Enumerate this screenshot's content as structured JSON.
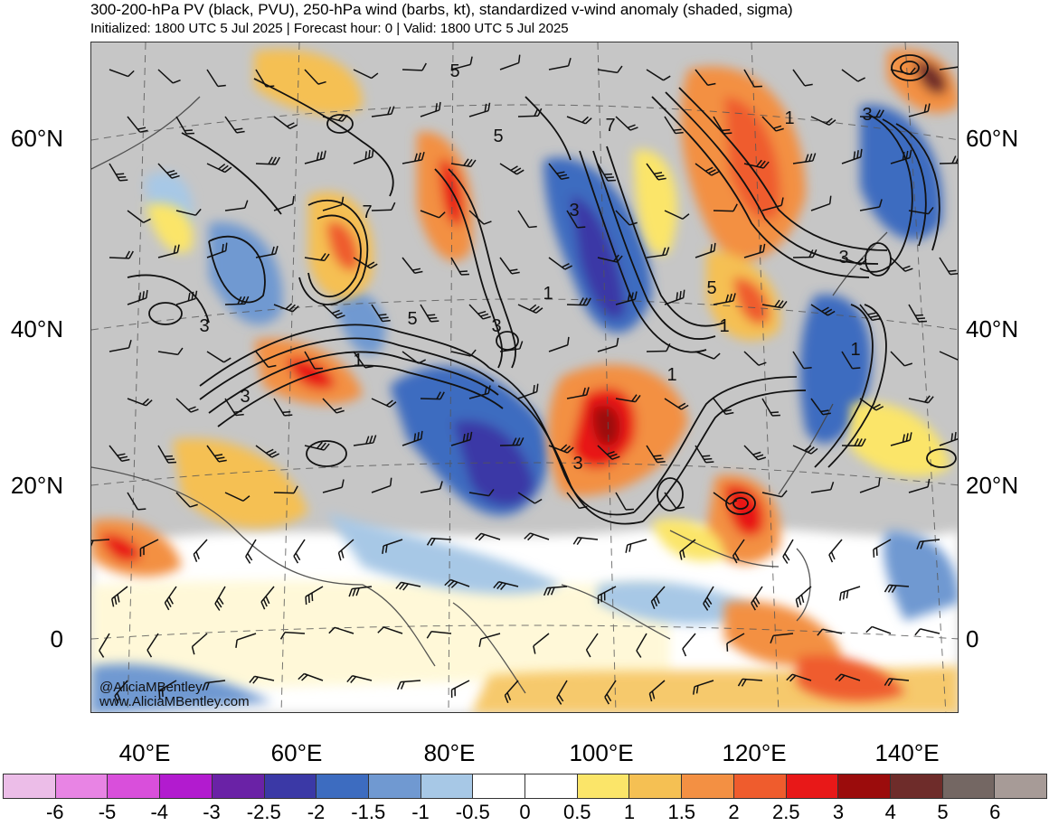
{
  "header": {
    "title": "300-200-hPa PV (black, PVU), 250-hPa wind (barbs, kt), standardized v-wind anomaly (shaded, sigma)",
    "subtitle": "Initialized: 1800 UTC 5 Jul 2025 | Forecast hour: 0 | Valid: 1800 UTC 5 Jul 2025"
  },
  "map": {
    "lat_labels": [
      "60°N",
      "40°N",
      "20°N",
      "0"
    ],
    "lon_labels": [
      "40°E",
      "60°E",
      "80°E",
      "100°E",
      "120°E",
      "140°E"
    ],
    "contour_labels": [
      "5",
      "5",
      "7",
      "3",
      "3",
      "5",
      "3",
      "1",
      "3",
      "7",
      "1",
      "5",
      "1",
      "1",
      "3",
      "3",
      "1",
      "3",
      "1"
    ],
    "watermark": {
      "handle": "@AliciaMBentley",
      "site": "www.AliciaMBentley.com"
    }
  },
  "colorbar": {
    "colors": [
      "#ecbde8",
      "#e884e4",
      "#d94fdb",
      "#b21bcf",
      "#6a22a6",
      "#3b39a6",
      "#3d6cc0",
      "#7099d1",
      "#a7c8e6",
      "#ffffff",
      "#ffffff",
      "#fbe569",
      "#f5c053",
      "#f39043",
      "#ef5c2d",
      "#e81818",
      "#9b0c0c",
      "#6e2c2a",
      "#746763",
      "#a79b97"
    ],
    "labels": [
      "-6",
      "-5",
      "-4",
      "-3",
      "-2.5",
      "-2",
      "-1.5",
      "-1",
      "-0.5",
      "0",
      "0.5",
      "1",
      "1.5",
      "2",
      "2.5",
      "3",
      "4",
      "5",
      "6"
    ]
  }
}
